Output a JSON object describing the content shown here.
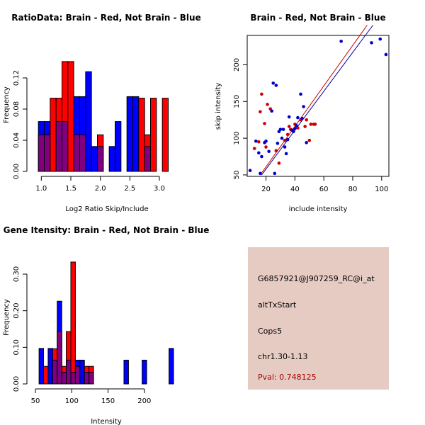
{
  "chart_data": [
    {
      "type": "histogram",
      "title": "RatioData: Brain - Red, Not Brain - Blue",
      "xlabel": "Log2 Ratio Skip/Include",
      "ylabel": "Frequency",
      "xlim": [
        0.9,
        3.3
      ],
      "ylim": [
        0,
        0.14
      ],
      "xticks": [
        "1.0",
        "1.5",
        "2.0",
        "2.5",
        "3.0"
      ],
      "yticks": [
        "0.00",
        "0.04",
        "0.08",
        "0.12"
      ],
      "bin_start": 0.95,
      "bin_width": 0.1,
      "series": [
        {
          "name": "Brain",
          "color": "#ff0000",
          "values": [
            0.047,
            0.047,
            0.094,
            0.094,
            0.141,
            0.141,
            0.047,
            0.047,
            0.0,
            0.0,
            0.047,
            0.0,
            0.0,
            0.0,
            0.0,
            0.0,
            0.0,
            0.094,
            0.047,
            0.094,
            0.0,
            0.094
          ]
        },
        {
          "name": "Not Brain",
          "color": "#0000ff",
          "values": [
            0.064,
            0.064,
            0.0,
            0.064,
            0.064,
            0.0,
            0.096,
            0.096,
            0.128,
            0.032,
            0.032,
            0.0,
            0.032,
            0.064,
            0.0,
            0.096,
            0.096,
            0.0,
            0.032,
            0.0,
            0.0,
            0.0
          ]
        }
      ]
    },
    {
      "type": "scatter",
      "title": "Brain - Red, Not Brain - Blue",
      "xlabel": "include intensity",
      "ylabel": "skip intensity",
      "xlim": [
        7,
        105
      ],
      "ylim": [
        48,
        240
      ],
      "xticks": [
        "20",
        "40",
        "60",
        "80",
        "100"
      ],
      "yticks": [
        "50",
        "100",
        "150",
        "200"
      ],
      "series": [
        {
          "name": "Brain",
          "color": "#cc0000",
          "points": [
            [
              12,
              86
            ],
            [
              15,
              95
            ],
            [
              16,
              136
            ],
            [
              17,
              160
            ],
            [
              19,
              120
            ],
            [
              20,
              88
            ],
            [
              21,
              146
            ],
            [
              23,
              140
            ],
            [
              27,
              83
            ],
            [
              29,
              66
            ],
            [
              33,
              97
            ],
            [
              35,
              105
            ],
            [
              36,
              116
            ],
            [
              37,
              112
            ],
            [
              39,
              110
            ],
            [
              40,
              119
            ],
            [
              42,
              114
            ],
            [
              47,
              116
            ],
            [
              48,
              125
            ],
            [
              50,
              97
            ],
            [
              51,
              119
            ],
            [
              53,
              119
            ],
            [
              54,
              119
            ],
            [
              44,
              125
            ]
          ]
        },
        {
          "name": "Not Brain",
          "color": "#0000cc",
          "points": [
            [
              9,
              56
            ],
            [
              13,
              96
            ],
            [
              15,
              80
            ],
            [
              16,
              52
            ],
            [
              17,
              75
            ],
            [
              19,
              94
            ],
            [
              20,
              96
            ],
            [
              22,
              82
            ],
            [
              24,
              137
            ],
            [
              25,
              175
            ],
            [
              26,
              52
            ],
            [
              27,
              172
            ],
            [
              28,
              93
            ],
            [
              29,
              109
            ],
            [
              30,
              112
            ],
            [
              31,
              100
            ],
            [
              32,
              112
            ],
            [
              33,
              88
            ],
            [
              34,
              79
            ],
            [
              35,
              98
            ],
            [
              36,
              129
            ],
            [
              38,
              111
            ],
            [
              39,
              109
            ],
            [
              40,
              113
            ],
            [
              41,
              117
            ],
            [
              42,
              128
            ],
            [
              44,
              160
            ],
            [
              45,
              127
            ],
            [
              46,
              143
            ],
            [
              48,
              94
            ],
            [
              72,
              232
            ],
            [
              93,
              230
            ],
            [
              99,
              235
            ],
            [
              103,
              214
            ]
          ]
        }
      ],
      "fit_lines": [
        {
          "name": "Brain",
          "color": "#cc0000",
          "x": [
            16,
            90
          ],
          "y": [
            50,
            254
          ]
        },
        {
          "name": "Not Brain",
          "color": "#000099",
          "x": [
            17,
            94
          ],
          "y": [
            50,
            254
          ]
        }
      ]
    },
    {
      "type": "histogram",
      "title": "Gene Itensity: Brain - Red, Not Brain - Blue",
      "xlabel": "Intensity",
      "ylabel": "Frequency",
      "xlim": [
        50,
        245
      ],
      "ylim": [
        0,
        0.36
      ],
      "xticks": [
        "50",
        "100",
        "150",
        "200"
      ],
      "yticks": [
        "0.00",
        "0.10",
        "0.20",
        "0.30"
      ],
      "bin_start": 55,
      "bin_width": 6.25,
      "series": [
        {
          "name": "Brain",
          "color": "#ff0000",
          "values": [
            0.0,
            0.048,
            0.0,
            0.096,
            0.144,
            0.048,
            0.143,
            0.333,
            0.048,
            0.0,
            0.048,
            0.048,
            0.0,
            0.0,
            0.0,
            0.0,
            0.0,
            0.0,
            0.0,
            0.0,
            0.0,
            0.0,
            0.0,
            0.0,
            0.0,
            0.0,
            0.0,
            0.0,
            0.0,
            0.0
          ]
        },
        {
          "name": "Not Brain",
          "color": "#0000ff",
          "values": [
            0.097,
            0.0,
            0.097,
            0.065,
            0.226,
            0.032,
            0.065,
            0.032,
            0.065,
            0.065,
            0.032,
            0.032,
            0.0,
            0.0,
            0.0,
            0.0,
            0.0,
            0.0,
            0.0,
            0.0,
            0.0,
            0.0,
            0.0,
            0.0,
            0.0,
            0.0,
            0.0,
            0.0,
            0.0,
            0.0
          ]
        }
      ],
      "extra_bars": [
        {
          "name": "Not Brain",
          "color": "#0000ff",
          "x": [
            175,
            200,
            237
          ],
          "values": [
            0.065,
            0.065,
            0.097
          ]
        }
      ]
    }
  ],
  "info": {
    "probe": "G6857921@J907259_RC@i_at",
    "event": "altTxStart",
    "gene": "Cops5",
    "location": "chr1.30-1.13",
    "pval": "Pval: 0.748125"
  },
  "colors": {
    "overlap": "#800080",
    "panel_bg": "#e6cbc3",
    "pval": "#a50000"
  }
}
